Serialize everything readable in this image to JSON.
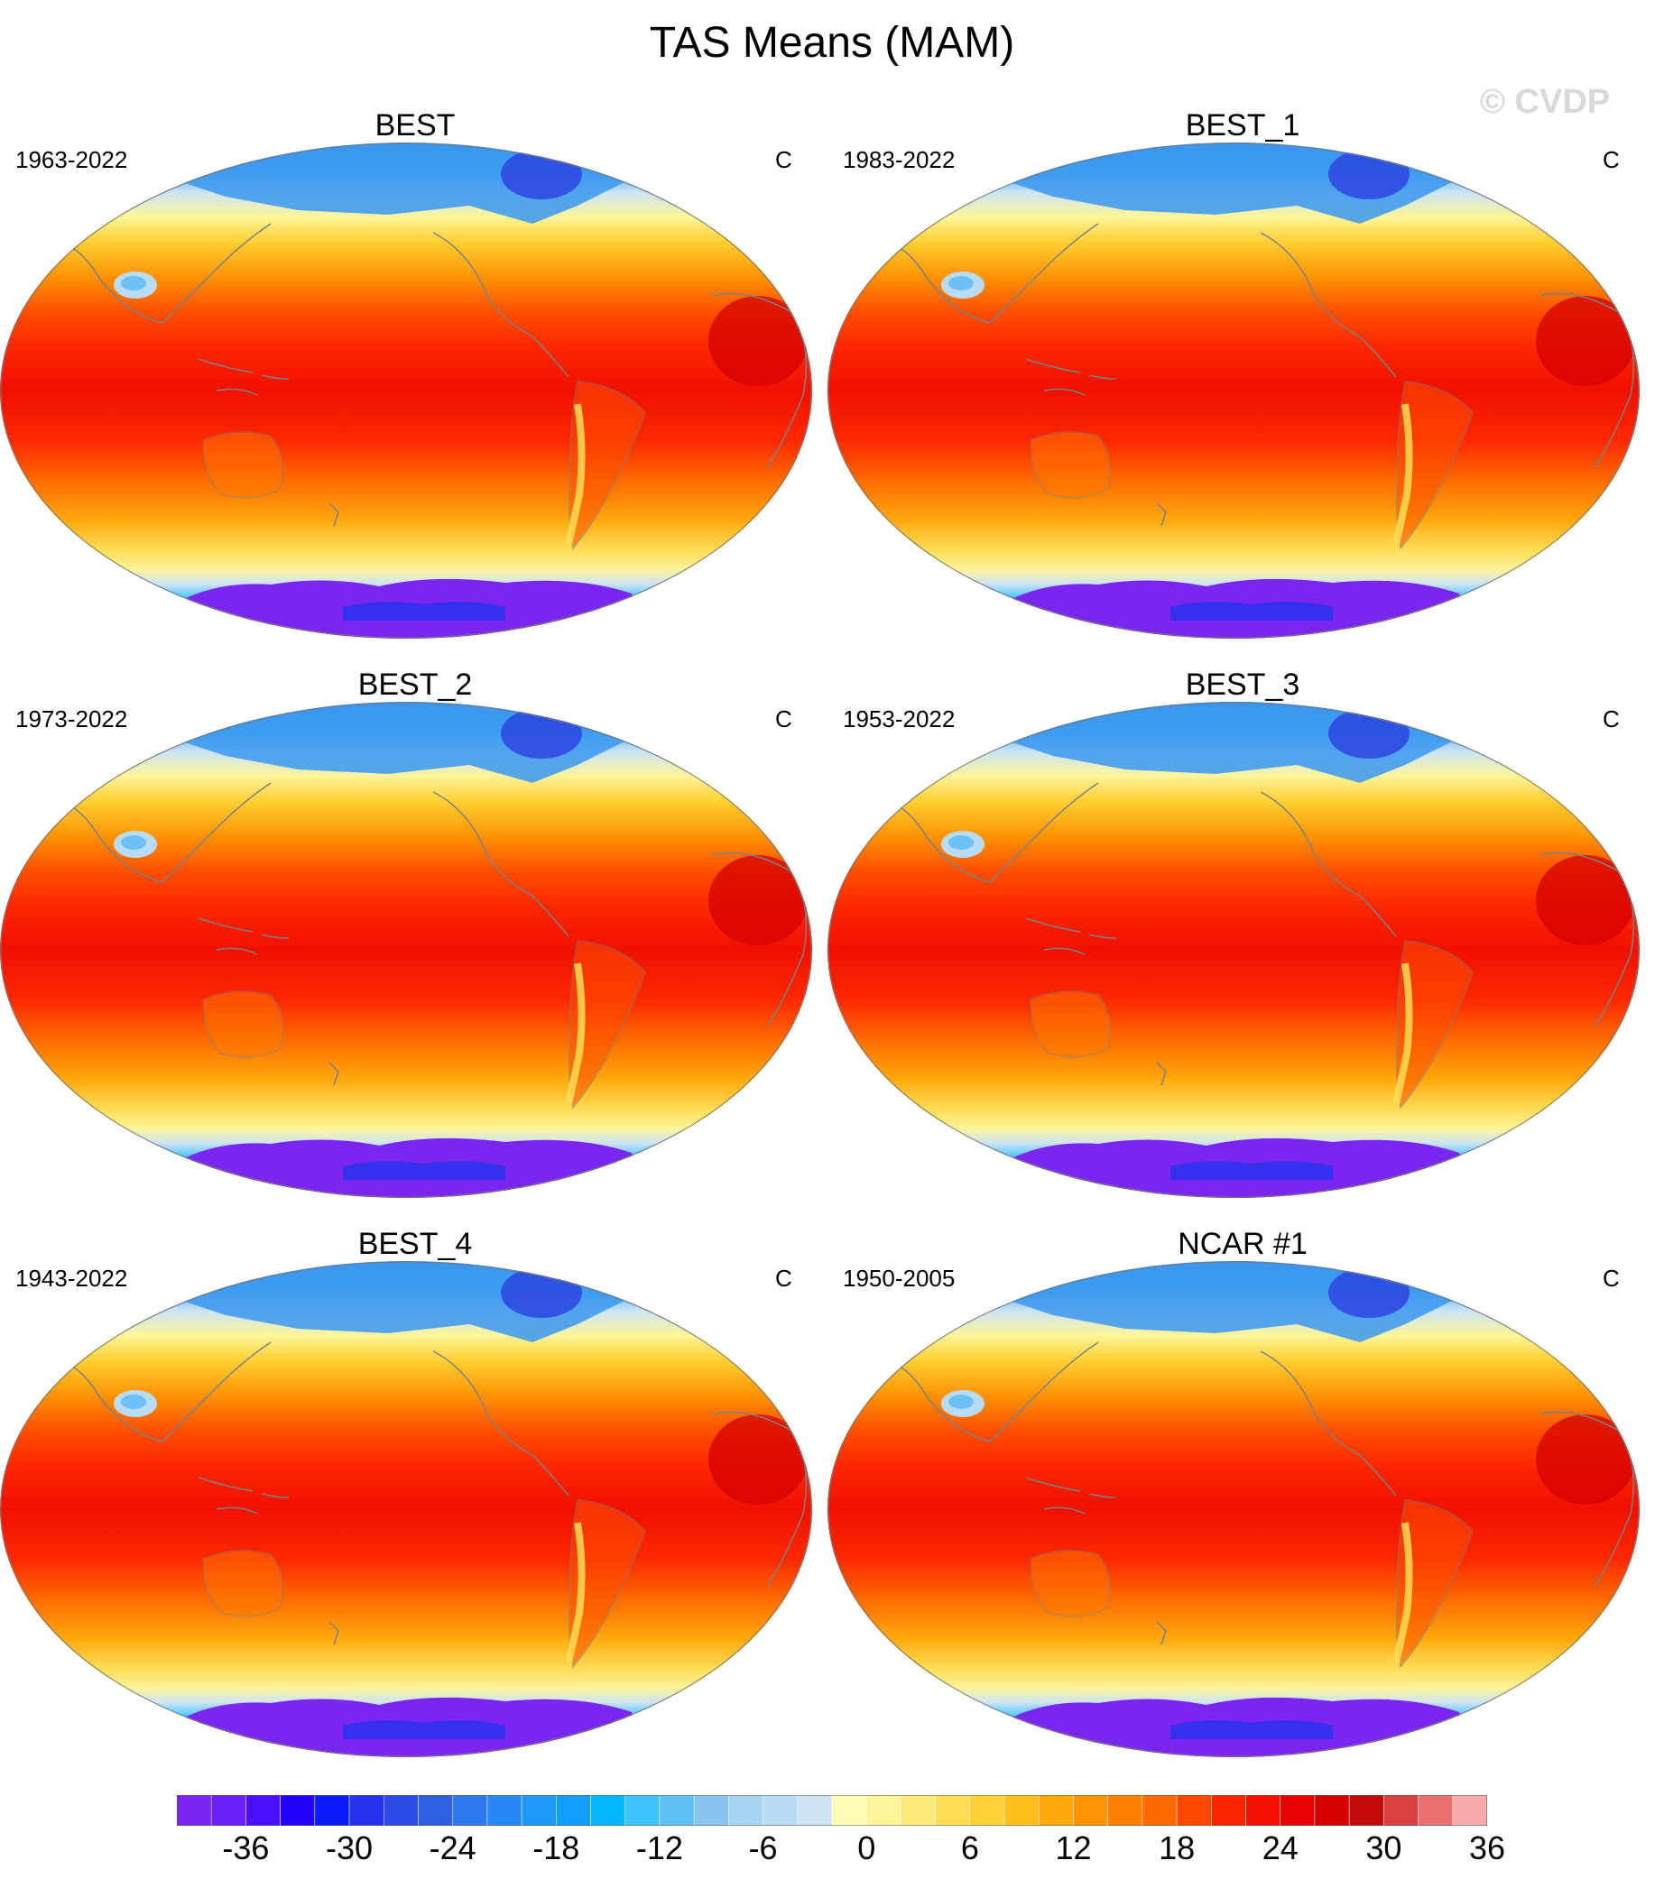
{
  "title": "TAS Means (MAM)",
  "watermark": "© CVDP",
  "panels": [
    {
      "name": "BEST",
      "period": "1963-2022",
      "units": "C"
    },
    {
      "name": "BEST_1",
      "period": "1983-2022",
      "units": "C"
    },
    {
      "name": "BEST_2",
      "period": "1973-2022",
      "units": "C"
    },
    {
      "name": "BEST_3",
      "period": "1953-2022",
      "units": "C"
    },
    {
      "name": "BEST_4",
      "period": "1943-2022",
      "units": "C"
    },
    {
      "name": "NCAR #1",
      "period": "1950-2005",
      "units": "C"
    }
  ],
  "colorbar": {
    "colors": [
      "#7a25f0",
      "#6a1ef8",
      "#4a10fc",
      "#2200ff",
      "#0a1cff",
      "#2432ee",
      "#2c4ce8",
      "#3060e2",
      "#2e78ee",
      "#2888f6",
      "#1f98fa",
      "#129efc",
      "#06b6fc",
      "#3ec4fc",
      "#60c0f6",
      "#88c4ee",
      "#a6d4f2",
      "#b8dcf4",
      "#cce4f6",
      "#fefdb8",
      "#fef49a",
      "#fee87a",
      "#fedc54",
      "#fed033",
      "#febe1c",
      "#fea80c",
      "#fe9404",
      "#fe8000",
      "#fe6a00",
      "#fe4800",
      "#fe2400",
      "#f41000",
      "#e60000",
      "#d40000",
      "#c20a0a",
      "#d84040",
      "#ea7070",
      "#f8aaaa"
    ],
    "tick_labels": [
      "-36",
      "-30",
      "-24",
      "-18",
      "-12",
      "-6",
      "0",
      "6",
      "12",
      "18",
      "24",
      "30",
      "36"
    ],
    "tick_values": [
      -36,
      -30,
      -24,
      -18,
      -12,
      -6,
      0,
      6,
      12,
      18,
      24,
      30,
      36
    ],
    "min": -39,
    "max": 45,
    "step": 2
  }
}
